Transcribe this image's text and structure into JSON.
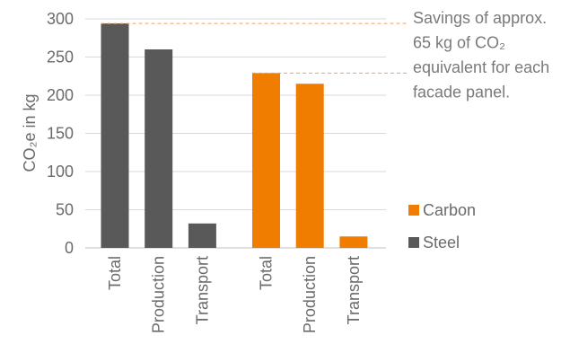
{
  "chart_data": {
    "type": "bar",
    "ylabel": "CO₂e in kg",
    "categories": [
      "Total",
      "Production",
      "Transport"
    ],
    "series": [
      {
        "name": "Steel",
        "color": "#595959",
        "values": [
          294,
          260,
          32
        ]
      },
      {
        "name": "Carbon",
        "color": "#f07d00",
        "values": [
          229,
          215,
          15
        ]
      }
    ],
    "ylim": [
      0,
      300
    ],
    "yticks": [
      0,
      50,
      100,
      150,
      200,
      250,
      300
    ],
    "grid": "horizontal",
    "legend_position": "right",
    "annotation": {
      "lines": [
        "Savings of approx.",
        "65 kg of CO₂",
        "equivalent for each",
        "facade panel."
      ],
      "line_color": "#f5a05a",
      "line_style": "dashed"
    }
  }
}
